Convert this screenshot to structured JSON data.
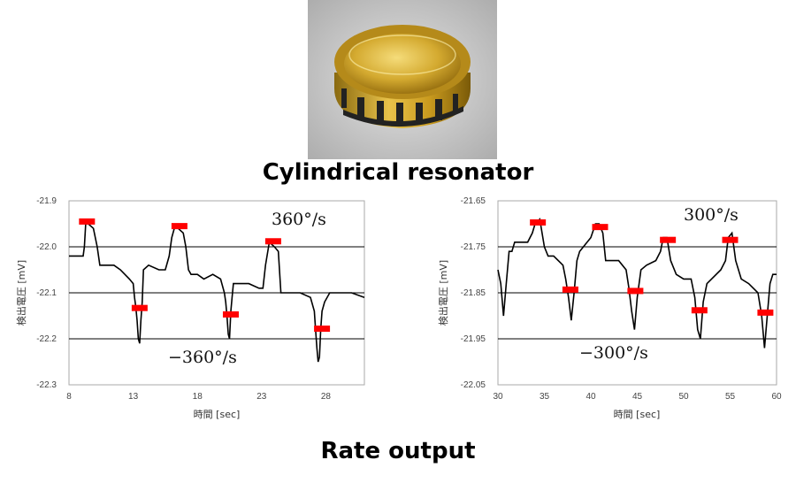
{
  "captions": {
    "resonator": "Cylindrical resonator",
    "rate": "Rate output"
  },
  "chart_data": [
    {
      "type": "line",
      "xlabel": "時間 [sec]",
      "ylabel": "検出電圧 [mV]",
      "xlim": [
        8,
        31
      ],
      "ylim": [
        -22.3,
        -21.9
      ],
      "xticks": [
        8,
        13,
        18,
        23,
        28
      ],
      "yticks": [
        "-21.9",
        "-22.0",
        "-22.1",
        "-22.2",
        "-22.3"
      ],
      "gridlines_y": [
        -22.0,
        -22.1,
        -22.2
      ],
      "annotations": [
        "360°/s",
        "−360°/s"
      ],
      "marker_color": "#ff0000",
      "line_color": "#000000",
      "markers": [
        {
          "x": 9.4,
          "y": -21.945
        },
        {
          "x": 13.5,
          "y": -22.133
        },
        {
          "x": 16.6,
          "y": -21.955
        },
        {
          "x": 20.6,
          "y": -22.147
        },
        {
          "x": 23.9,
          "y": -21.988
        },
        {
          "x": 27.7,
          "y": -22.178
        }
      ],
      "series": [
        {
          "x": [
            8.0,
            9.0,
            9.1,
            9.2,
            9.3,
            9.5,
            9.9,
            10.2,
            10.4,
            11.0,
            11.5,
            12.0,
            12.7,
            13.0,
            13.1,
            13.2,
            13.3,
            13.4,
            13.5,
            13.6,
            13.7,
            13.8,
            14.2,
            15.0,
            15.5,
            15.8,
            16.0,
            16.2,
            16.5,
            16.9,
            17.1,
            17.3,
            17.5,
            18.0,
            18.5,
            19.2,
            19.8,
            20.1,
            20.2,
            20.3,
            20.4,
            20.5,
            20.6,
            20.7,
            20.8,
            21.2,
            22.0,
            22.8,
            23.1,
            23.3,
            23.6,
            24.0,
            24.3,
            24.5,
            25.0,
            26.0,
            26.8,
            27.1,
            27.2,
            27.3,
            27.4,
            27.5,
            27.6,
            27.7,
            27.9,
            28.3,
            29.0,
            30.0,
            31.0
          ],
          "y": [
            -22.02,
            -22.02,
            -22.02,
            -22.0,
            -21.95,
            -21.95,
            -21.96,
            -22.0,
            -22.04,
            -22.04,
            -22.04,
            -22.05,
            -22.07,
            -22.08,
            -22.11,
            -22.13,
            -22.16,
            -22.2,
            -22.21,
            -22.16,
            -22.12,
            -22.05,
            -22.04,
            -22.05,
            -22.05,
            -22.02,
            -21.98,
            -21.96,
            -21.96,
            -21.97,
            -22.0,
            -22.05,
            -22.06,
            -22.06,
            -22.07,
            -22.06,
            -22.07,
            -22.1,
            -22.12,
            -22.15,
            -22.19,
            -22.2,
            -22.14,
            -22.11,
            -22.08,
            -22.08,
            -22.08,
            -22.09,
            -22.09,
            -22.04,
            -21.99,
            -22.0,
            -22.01,
            -22.1,
            -22.1,
            -22.1,
            -22.11,
            -22.14,
            -22.18,
            -22.22,
            -22.25,
            -22.24,
            -22.18,
            -22.14,
            -22.12,
            -22.1,
            -22.1,
            -22.1,
            -22.11
          ]
        }
      ]
    },
    {
      "type": "line",
      "xlabel": "時間 [sec]",
      "ylabel": "検出電圧 [mV]",
      "xlim": [
        30,
        60
      ],
      "ylim": [
        -22.05,
        -21.65
      ],
      "xticks": [
        30,
        35,
        40,
        45,
        50,
        55,
        60
      ],
      "yticks": [
        "-21.65",
        "-21.75",
        "-21.85",
        "-21.95",
        "-22.05"
      ],
      "gridlines_y": [
        -21.75,
        -21.85,
        -21.95
      ],
      "annotations": [
        "300°/s",
        "−300°/s"
      ],
      "marker_color": "#ff0000",
      "line_color": "#000000",
      "markers": [
        {
          "x": 34.3,
          "y": -21.697
        },
        {
          "x": 37.8,
          "y": -21.843
        },
        {
          "x": 41.0,
          "y": -21.707
        },
        {
          "x": 44.8,
          "y": -21.846
        },
        {
          "x": 48.3,
          "y": -21.735
        },
        {
          "x": 51.7,
          "y": -21.888
        },
        {
          "x": 55.0,
          "y": -21.735
        },
        {
          "x": 58.8,
          "y": -21.893
        }
      ],
      "series": [
        {
          "x": [
            30.0,
            30.3,
            30.6,
            30.9,
            31.2,
            31.5,
            31.8,
            32.5,
            33.2,
            33.7,
            34.0,
            34.5,
            35.0,
            35.4,
            36.0,
            37.0,
            37.3,
            37.6,
            37.9,
            38.2,
            38.5,
            38.8,
            39.2,
            40.0,
            40.5,
            40.9,
            41.3,
            41.6,
            42.0,
            43.0,
            43.8,
            44.1,
            44.4,
            44.7,
            45.0,
            45.4,
            46.0,
            47.0,
            47.5,
            47.8,
            48.2,
            48.6,
            49.2,
            50.0,
            50.8,
            51.2,
            51.5,
            51.8,
            52.1,
            52.5,
            53.0,
            54.0,
            54.5,
            54.8,
            55.2,
            55.6,
            56.2,
            57.0,
            58.0,
            58.4,
            58.7,
            59.0,
            59.3,
            59.6,
            60.0
          ],
          "y": [
            -21.8,
            -21.83,
            -21.9,
            -21.83,
            -21.76,
            -21.76,
            -21.74,
            -21.74,
            -21.74,
            -21.72,
            -21.7,
            -21.69,
            -21.75,
            -21.77,
            -21.77,
            -21.79,
            -21.82,
            -21.86,
            -21.91,
            -21.85,
            -21.78,
            -21.76,
            -21.75,
            -21.73,
            -21.7,
            -21.7,
            -21.72,
            -21.78,
            -21.78,
            -21.78,
            -21.8,
            -21.84,
            -21.89,
            -21.93,
            -21.86,
            -21.8,
            -21.79,
            -21.78,
            -21.76,
            -21.73,
            -21.73,
            -21.78,
            -21.81,
            -21.82,
            -21.82,
            -21.86,
            -21.93,
            -21.95,
            -21.87,
            -21.83,
            -21.82,
            -21.8,
            -21.78,
            -21.73,
            -21.72,
            -21.78,
            -21.82,
            -21.83,
            -21.85,
            -21.9,
            -21.97,
            -21.9,
            -21.83,
            -21.81,
            -21.81
          ]
        }
      ]
    }
  ]
}
